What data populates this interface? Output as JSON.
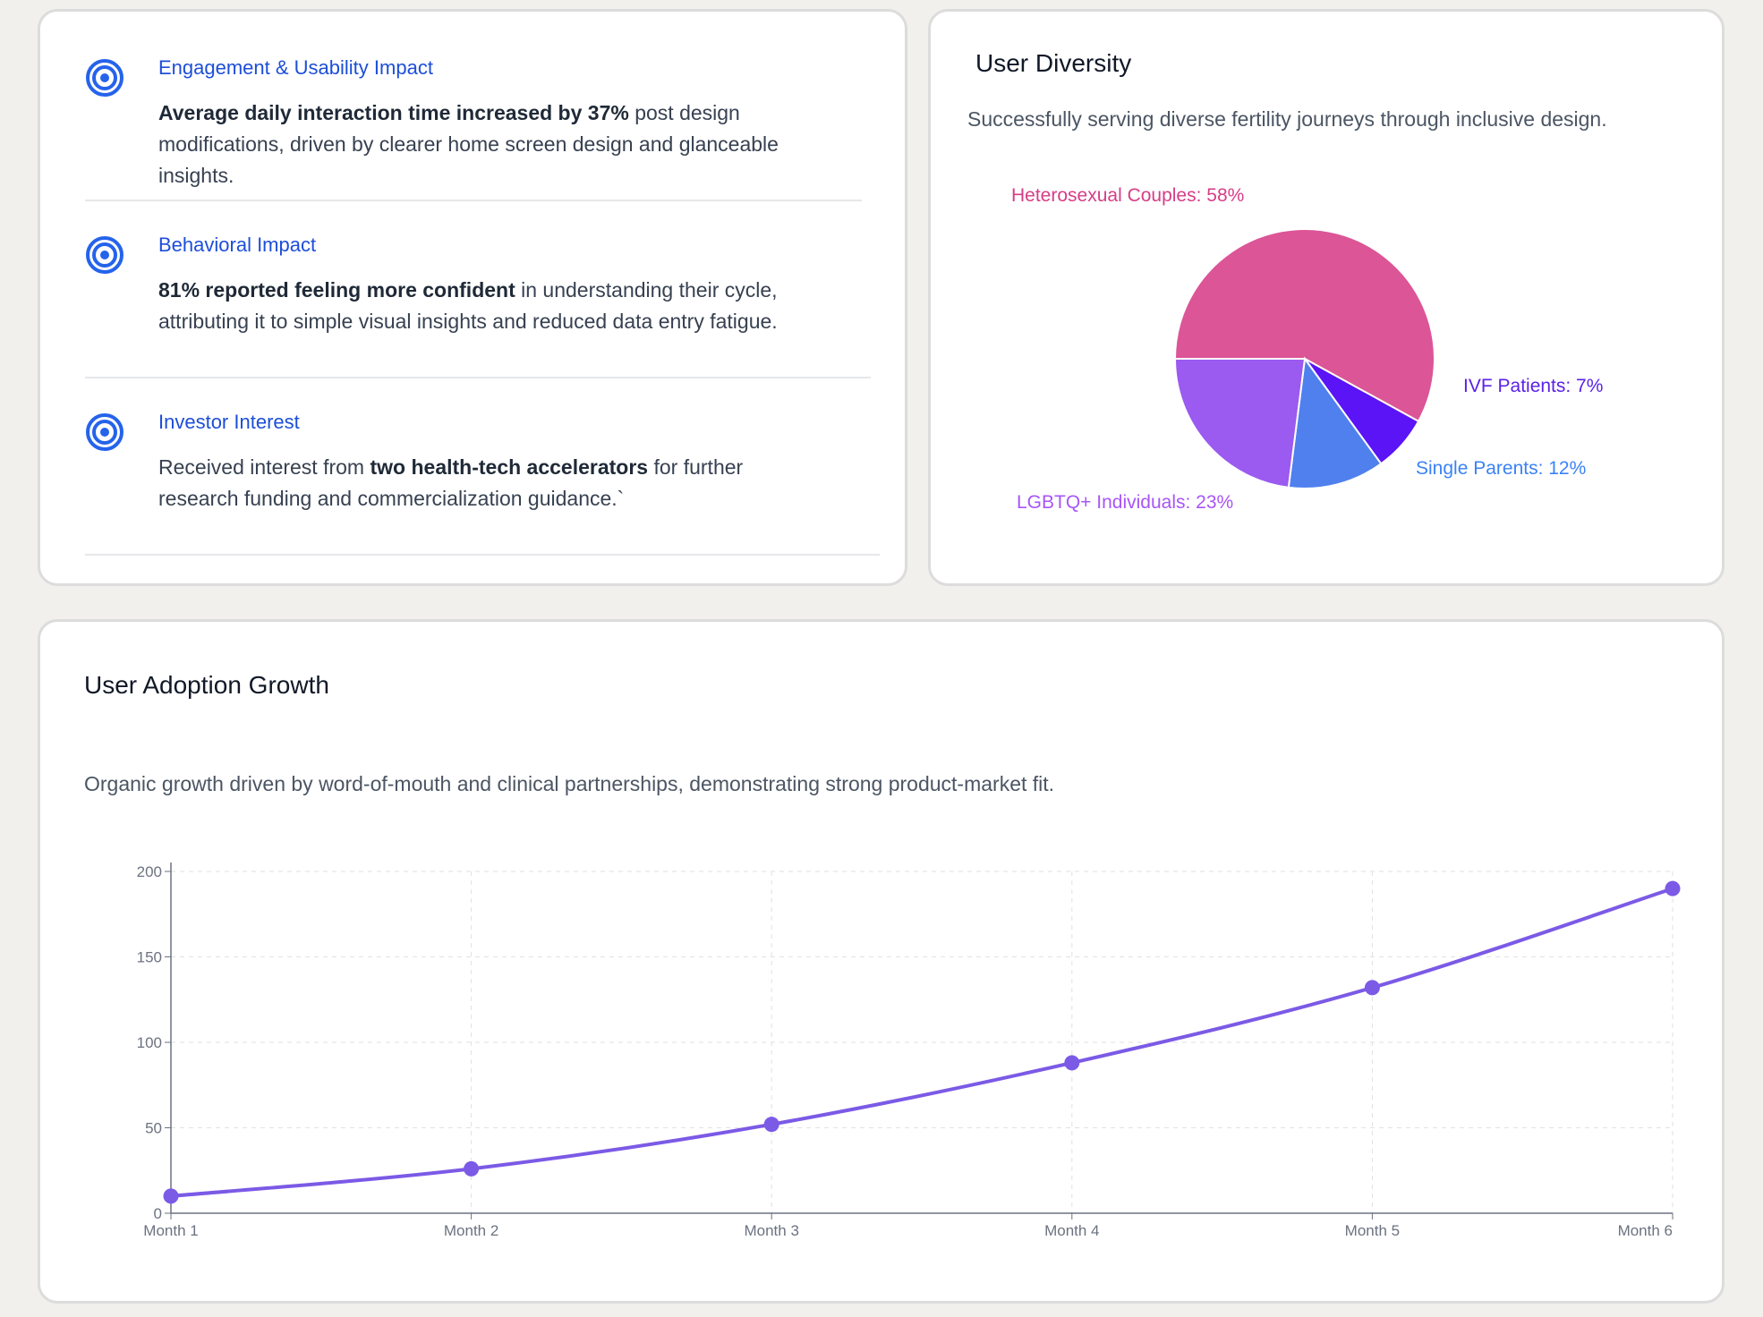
{
  "impact": {
    "items": [
      {
        "title": "Engagement & Usability Impact",
        "body": [
          {
            "text": "Average daily interaction time increased by 37%",
            "bold": true
          },
          {
            "text": " post design modifications, driven by clearer home screen design and glanceable insights.",
            "bold": false
          }
        ]
      },
      {
        "title": "Behavioral Impact",
        "body": [
          {
            "text": "81% reported feeling more confident",
            "bold": true
          },
          {
            "text": " in understanding their cycle, attributing it to simple visual insights and reduced data entry fatigue.",
            "bold": false
          }
        ]
      },
      {
        "title": "Investor Interest",
        "body": [
          {
            "text": "Received interest from ",
            "bold": false
          },
          {
            "text": "two health-tech accelerators",
            "bold": true
          },
          {
            "text": " for further research funding and commercialization guidance.`",
            "bold": false
          }
        ]
      }
    ]
  },
  "diversity": {
    "title": "User Diversity",
    "subtitle": "Successfully serving diverse fertility journeys through inclusive design.",
    "chart_data": {
      "type": "pie",
      "slices": [
        {
          "label": "Heterosexual Couples: 58%",
          "value": 58,
          "color": "#db5597",
          "label_color": "#d63d87"
        },
        {
          "label": "IVF Patients: 7%",
          "value": 7,
          "color": "#5a14f5",
          "label_color": "#5b21e6"
        },
        {
          "label": "Single Parents: 12%",
          "value": 12,
          "color": "#4f80ee",
          "label_color": "#3b82f6"
        },
        {
          "label": "LGBTQ+ Individuals: 23%",
          "value": 23,
          "color": "#9b5af0",
          "label_color": "#a855f7"
        }
      ]
    }
  },
  "growth": {
    "title": "User Adoption Growth",
    "subtitle": "Organic growth driven by word-of-mouth and clinical partnerships, demonstrating strong product-market fit.",
    "chart_data": {
      "type": "line",
      "categories": [
        "Month 1",
        "Month 2",
        "Month 3",
        "Month 4",
        "Month 5",
        "Month 6"
      ],
      "series": [
        {
          "values": [
            10,
            26,
            52,
            88,
            132,
            190
          ],
          "color": "#7b5ae6"
        }
      ],
      "ylim": [
        0,
        200
      ],
      "yticks": [
        0,
        50,
        100,
        150,
        200
      ],
      "grid": true
    }
  }
}
